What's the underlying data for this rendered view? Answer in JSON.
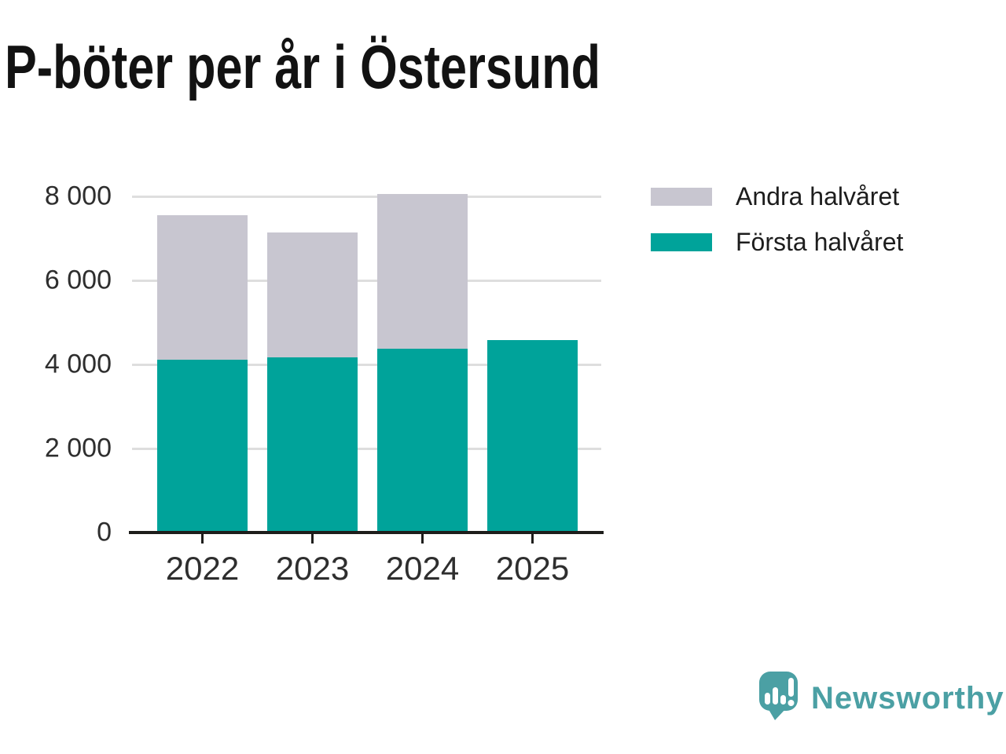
{
  "title": "P-böter per år i Östersund",
  "chart_data": {
    "type": "bar",
    "stacked": true,
    "title": "P-böter per år i Östersund",
    "categories": [
      "2022",
      "2023",
      "2024",
      "2025"
    ],
    "series": [
      {
        "name": "Första halvåret",
        "color": "#00a39a",
        "values": [
          4110,
          4170,
          4380,
          4580
        ]
      },
      {
        "name": "Andra halvåret",
        "color": "#c8c6d0",
        "values": [
          3440,
          2970,
          3670,
          0
        ]
      }
    ],
    "legend": {
      "position": "right",
      "order": [
        "Andra halvåret",
        "Första halvåret"
      ]
    },
    "xlabel": "",
    "ylabel": "",
    "ylim": [
      0,
      8000
    ],
    "yticks": [
      {
        "value": 0,
        "label": "0"
      },
      {
        "value": 2000,
        "label": "2 000"
      },
      {
        "value": 4000,
        "label": "4 000"
      },
      {
        "value": 6000,
        "label": "6 000"
      },
      {
        "value": 8000,
        "label": "8 000"
      }
    ],
    "grid": "horizontal"
  },
  "colors": {
    "grid": "#dedede",
    "axis": "#1d1d1b",
    "tick_text": "#2e2e2e",
    "title_text": "#121212"
  },
  "branding": {
    "name": "Newsworthy",
    "color": "#4ba0a4"
  }
}
